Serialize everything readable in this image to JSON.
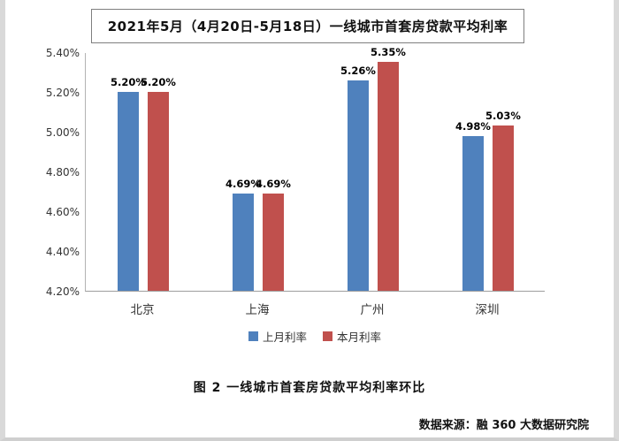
{
  "page": {
    "caption": "图 2 一线城市首套房贷款平均利率环比",
    "source": "数据来源：融 360 大数据研究院"
  },
  "chart_data": {
    "type": "bar",
    "title": "2021年5月（4月20日-5月18日）一线城市首套房贷款平均利率",
    "categories": [
      "北京",
      "上海",
      "广州",
      "深圳"
    ],
    "series": [
      {
        "name": "上月利率",
        "color": "#4f81bd",
        "values": [
          5.2,
          4.69,
          5.26,
          4.98
        ]
      },
      {
        "name": "本月利率",
        "color": "#c0504d",
        "values": [
          5.2,
          4.69,
          5.35,
          5.03
        ]
      }
    ],
    "ylim": [
      4.2,
      5.4
    ],
    "yticks": [
      "5.40%",
      "5.20%",
      "5.00%",
      "4.80%",
      "4.60%",
      "4.40%",
      "4.20%"
    ],
    "value_label_suffix": "%",
    "grid": false,
    "legend_position": "bottom"
  }
}
